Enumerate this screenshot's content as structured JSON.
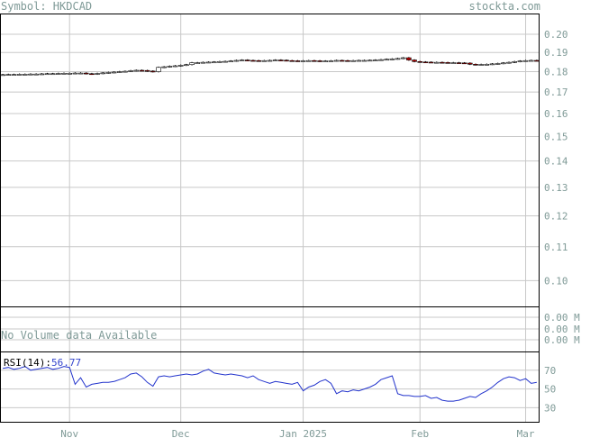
{
  "header": {
    "symbol_label": "Symbol: HKDCAD",
    "site": "stockta.com"
  },
  "volume_panel": {
    "message": "No Volume data Available",
    "ticks": [
      "0.00 M",
      "0.00 M",
      "0.00 M"
    ]
  },
  "rsi_panel": {
    "label": "RSI(14):",
    "value": "56.77",
    "ticks": [
      "70",
      "50",
      "30"
    ]
  },
  "colors": {
    "grid": "#c8c8c8",
    "axis_text": "#7f9a97",
    "down_candle": "#cc0000",
    "up_candle": "#ffffff",
    "rsi_line": "#2233cc"
  },
  "chart_data": [
    {
      "type": "candlestick",
      "title": "",
      "y_scale": "log",
      "ylim": [
        0.093,
        0.212
      ],
      "y_ticks": [
        0.2,
        0.19,
        0.18,
        0.17,
        0.16,
        0.15,
        0.14,
        0.13,
        0.12,
        0.11,
        0.1
      ],
      "x_ticks": [
        "Nov",
        "Dec",
        "Jan 2025",
        "Feb",
        "Mar"
      ],
      "grid": true,
      "series": [
        {
          "values": [
            0.1785,
            0.1786,
            0.1786,
            0.1787,
            0.1787,
            0.1788,
            0.1788,
            0.1789,
            0.179,
            0.179,
            0.1791,
            0.1792,
            0.1792,
            0.1793,
            0.1793,
            0.179,
            0.1788,
            0.1791,
            0.1794,
            0.1796,
            0.1798,
            0.18,
            0.1802,
            0.1805,
            0.1807,
            0.1806,
            0.1803,
            0.18,
            0.1822,
            0.1825,
            0.1828,
            0.183,
            0.1833,
            0.1836,
            0.1846,
            0.1846,
            0.1848,
            0.1849,
            0.185,
            0.1852,
            0.1853,
            0.1855,
            0.1858,
            0.186,
            0.1858,
            0.1857,
            0.1856,
            0.1857,
            0.1858,
            0.186,
            0.1859,
            0.1857,
            0.1856,
            0.1855,
            0.1856,
            0.1857,
            0.1856,
            0.1854,
            0.1855,
            0.1856,
            0.1858,
            0.1857,
            0.1856,
            0.1857,
            0.1858,
            0.1858,
            0.1859,
            0.186,
            0.1862,
            0.1864,
            0.1866,
            0.1868,
            0.1872,
            0.186,
            0.1852,
            0.185,
            0.1849,
            0.1848,
            0.1848,
            0.1847,
            0.1846,
            0.1846,
            0.1845,
            0.1844,
            0.1838,
            0.1836,
            0.1837,
            0.1838,
            0.184,
            0.1842,
            0.1845,
            0.1848,
            0.1852,
            0.1855,
            0.1857,
            0.1858,
            0.1857
          ]
        }
      ]
    },
    {
      "type": "line",
      "title": "RSI(14)",
      "ylim": [
        15,
        90
      ],
      "y_ticks": [
        70,
        50,
        30
      ],
      "series": [
        {
          "name": "RSI(14)",
          "values": [
            72,
            73,
            71,
            72,
            74,
            70,
            71,
            72,
            73,
            71,
            72,
            74,
            73,
            55,
            62,
            52,
            55,
            56,
            57,
            57,
            58,
            60,
            62,
            66,
            67,
            63,
            57,
            53,
            63,
            64,
            63,
            64,
            65,
            66,
            65,
            66,
            69,
            71,
            67,
            66,
            65,
            66,
            65,
            64,
            62,
            64,
            60,
            58,
            56,
            58,
            57,
            56,
            55,
            57,
            48,
            52,
            54,
            58,
            60,
            56,
            45,
            48,
            47,
            49,
            48,
            50,
            52,
            55,
            60,
            62,
            64,
            45,
            43,
            43,
            42,
            42,
            43,
            40,
            41,
            38,
            37,
            37,
            38,
            40,
            42,
            41,
            45,
            48,
            52,
            57,
            61,
            63,
            62,
            59,
            61,
            56,
            57
          ]
        }
      ]
    }
  ]
}
